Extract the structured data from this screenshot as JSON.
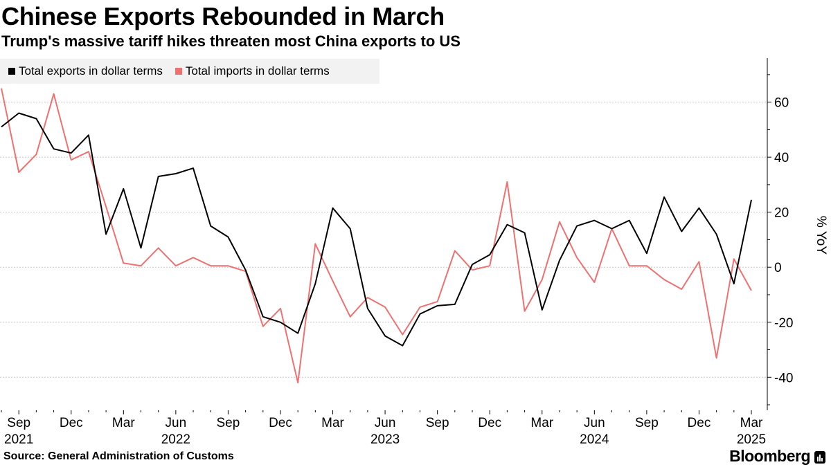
{
  "header": {
    "title": "Chinese Exports Rebounded in March",
    "subtitle": "Trump's massive tariff hikes threaten most China exports to US"
  },
  "footer": {
    "source": "Source: General Administration of Customs",
    "brand": "Bloomberg"
  },
  "colors": {
    "exports": "#000000",
    "imports": "#f07070",
    "gridline": "#c8c8c8",
    "legend_bg": "#f2f2f2"
  },
  "chart_data": {
    "type": "line",
    "title": "Chinese Exports Rebounded in March",
    "ylabel": "% YoY",
    "xlabel": "",
    "ylim": [
      -52,
      76
    ],
    "yticks": [
      60,
      40,
      20,
      0,
      -20,
      -40
    ],
    "ytick_labels": [
      "60",
      "40",
      "20",
      "0",
      "-20",
      "-40"
    ],
    "grid": true,
    "legend": "top-left",
    "x_labels": [
      {
        "index": 1,
        "month": "Sep",
        "year": "2021"
      },
      {
        "index": 4,
        "month": "Dec",
        "year": ""
      },
      {
        "index": 7,
        "month": "Mar",
        "year": ""
      },
      {
        "index": 10,
        "month": "Jun",
        "year": "2022"
      },
      {
        "index": 13,
        "month": "Sep",
        "year": ""
      },
      {
        "index": 16,
        "month": "Dec",
        "year": ""
      },
      {
        "index": 19,
        "month": "Mar",
        "year": ""
      },
      {
        "index": 22,
        "month": "Jun",
        "year": "2023"
      },
      {
        "index": 25,
        "month": "Sep",
        "year": ""
      },
      {
        "index": 28,
        "month": "Dec",
        "year": ""
      },
      {
        "index": 31,
        "month": "Mar",
        "year": ""
      },
      {
        "index": 34,
        "month": "Jun",
        "year": "2024"
      },
      {
        "index": 37,
        "month": "Sep",
        "year": ""
      },
      {
        "index": 40,
        "month": "Dec",
        "year": ""
      },
      {
        "index": 43,
        "month": "Mar",
        "year": "2025"
      }
    ],
    "series": [
      {
        "name": "Total exports in dollar terms",
        "values": [
          51,
          56,
          54,
          43,
          41.5,
          48,
          12,
          28.5,
          7,
          33,
          34,
          36,
          15,
          11,
          -1,
          -18,
          -20,
          -24,
          -6,
          21.5,
          14,
          -15,
          -25,
          -28.5,
          -17,
          -14,
          -13.5,
          1,
          4.5,
          15.5,
          12.5,
          -15.5,
          2.5,
          15,
          17,
          14,
          17,
          5,
          25.5,
          13,
          21.5,
          12,
          -6,
          24.5
        ]
      },
      {
        "name": "Total imports in dollar terms",
        "values": [
          65,
          34.5,
          41,
          63,
          39,
          42,
          22,
          1.5,
          0.5,
          7,
          0.5,
          3.5,
          0.5,
          0.5,
          -1.5,
          -21.5,
          -15,
          -42,
          8.5,
          -5,
          -18,
          -11,
          -14.5,
          -24.5,
          -14.5,
          -12.5,
          6,
          -1,
          0.5,
          31,
          -16,
          -4.5,
          16.5,
          3.5,
          -5.5,
          14,
          0.5,
          0.5,
          -4.5,
          -8,
          2,
          -33,
          3,
          -8.5
        ]
      }
    ]
  }
}
